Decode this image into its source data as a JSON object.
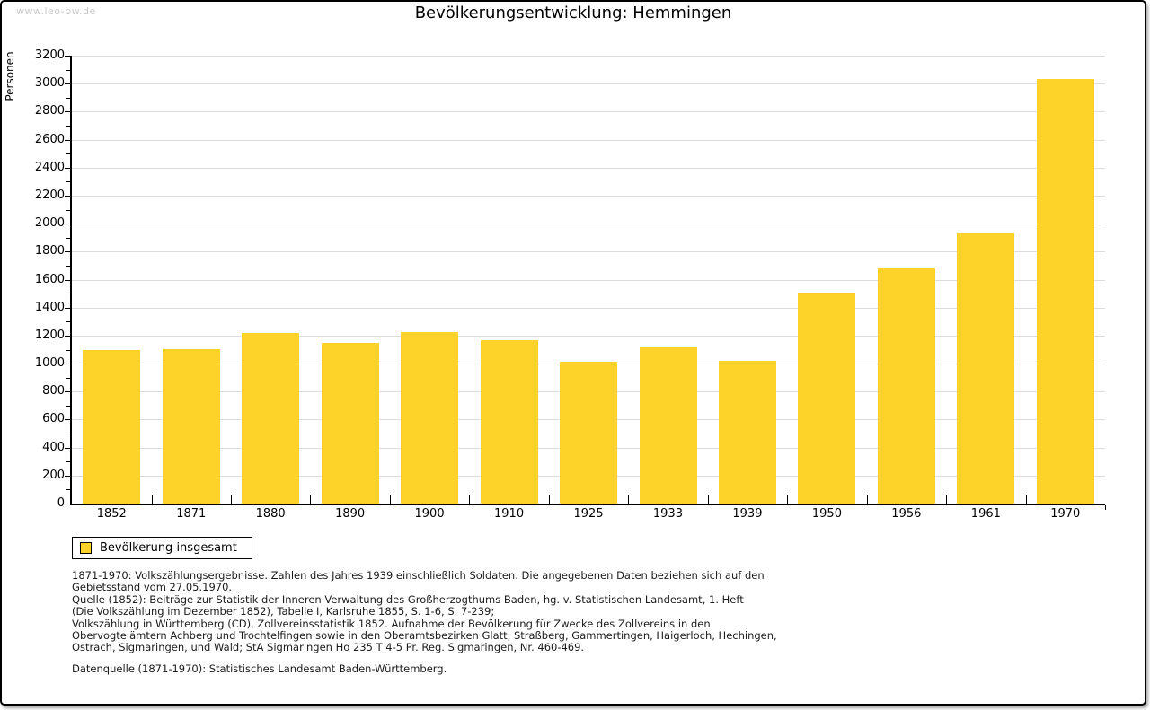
{
  "watermark": "www.leo-bw.de",
  "title": "Bevölkerungsentwicklung: Hemmingen",
  "chart_data": {
    "type": "bar",
    "title": "Bevölkerungsentwicklung: Hemmingen",
    "categories": [
      "1852",
      "1871",
      "1880",
      "1890",
      "1900",
      "1910",
      "1925",
      "1933",
      "1939",
      "1950",
      "1956",
      "1961",
      "1970"
    ],
    "series": [
      {
        "name": "Bevölkerung insgesamt",
        "values": [
          1100,
          1105,
          1220,
          1150,
          1225,
          1170,
          1015,
          1115,
          1020,
          1510,
          1680,
          1930,
          3035
        ]
      }
    ],
    "xlabel": "",
    "ylabel": "Personen",
    "ylim": [
      0,
      3200
    ],
    "ytick_step": 200,
    "yminor_step": 100,
    "grid": true,
    "legend_position": "bottom-left",
    "bar_color": "#FDD32A",
    "gridline_color": "#DCDCDC",
    "axis_color": "#000000"
  },
  "legend": {
    "label": "Bevölkerung insgesamt"
  },
  "notes": {
    "lines": [
      "1871-1970: Volkszählungsergebnisse. Zahlen des Jahres 1939 einschließlich Soldaten. Die angegebenen Daten beziehen sich auf den",
      "Gebietsstand vom 27.05.1970.",
      "Quelle (1852): Beiträge zur Statistik der Inneren Verwaltung des Großherzogthums Baden, hg. v. Statistischen Landesamt, 1. Heft",
      "(Die Volkszählung im Dezember 1852), Tabelle I, Karlsruhe 1855, S. 1-6, S. 7-239;",
      "Volkszählung in Württemberg (CD), Zollvereinsstatistik 1852. Aufnahme der Bevölkerung für Zwecke des Zollvereins in den",
      "Obervogteiämtern Achberg und Trochtelfingen sowie in den Oberamtsbezirken Glatt, Straßberg, Gammertingen, Haigerloch, Hechingen,",
      "Ostrach, Sigmaringen, und Wald; StA Sigmaringen Ho 235 T 4-5 Pr. Reg. Sigmaringen, Nr. 460-469."
    ],
    "datasource": "Datenquelle (1871-1970): Statistisches Landesamt Baden-Württemberg."
  }
}
